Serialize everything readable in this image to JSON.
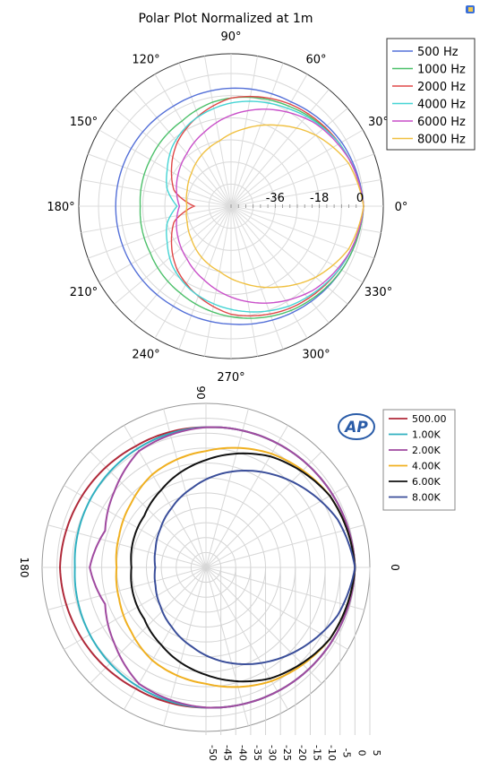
{
  "chart_data": [
    {
      "type": "polar-line",
      "title": "Polar Plot Normalized at 1m",
      "angle_labels": [
        "0°",
        "30°",
        "60°",
        "90°",
        "120°",
        "150°",
        "180°",
        "210°",
        "240°",
        "270°",
        "300°",
        "330°"
      ],
      "radial_tick_labels": [
        "-36",
        "-18",
        "0"
      ],
      "r_range_db": [
        -54,
        0
      ],
      "legend_position": "top-right",
      "grid": true,
      "series": [
        {
          "name": "500 Hz",
          "color": "#5470d8",
          "angles": [
            0,
            30,
            60,
            90,
            120,
            150,
            180,
            210,
            240,
            270,
            300,
            330
          ],
          "values_db": [
            0,
            -2,
            -5,
            -6,
            -7,
            -7,
            -7,
            -7,
            -7,
            -6,
            -4,
            -2
          ]
        },
        {
          "name": "1000 Hz",
          "color": "#4cc06a",
          "angles": [
            0,
            30,
            60,
            80,
            100,
            120,
            150,
            180,
            210,
            240,
            270,
            300,
            330
          ],
          "values_db": [
            0,
            -3,
            -7,
            -9,
            -11,
            -14,
            -16,
            -17,
            -16,
            -13,
            -9,
            -5,
            -2
          ]
        },
        {
          "name": "2000 Hz",
          "color": "#e04848",
          "angles": [
            0,
            30,
            60,
            90,
            110,
            130,
            150,
            165,
            175,
            180,
            185,
            195,
            210,
            230,
            250,
            270,
            300,
            330
          ],
          "values_db": [
            0,
            -3,
            -6,
            -10,
            -15,
            -20,
            -26,
            -30,
            -36,
            -39,
            -36,
            -30,
            -26,
            -20,
            -15,
            -10,
            -6,
            -3
          ]
        },
        {
          "name": "4000 Hz",
          "color": "#45d4d4",
          "angles": [
            0,
            30,
            60,
            90,
            115,
            135,
            150,
            165,
            180,
            195,
            210,
            225,
            245,
            270,
            300,
            330
          ],
          "values_db": [
            0,
            -3,
            -8,
            -12,
            -16,
            -20,
            -24,
            -27,
            -32,
            -27,
            -24,
            -20,
            -16,
            -12,
            -7,
            -3
          ]
        },
        {
          "name": "6000 Hz",
          "color": "#c94fc9",
          "angles": [
            0,
            20,
            45,
            70,
            90,
            110,
            130,
            150,
            165,
            180,
            195,
            210,
            230,
            250,
            270,
            290,
            315,
            340
          ],
          "values_db": [
            0,
            -2,
            -6,
            -12,
            -17,
            -22,
            -26,
            -29,
            -31,
            -33,
            -31,
            -29,
            -26,
            -22,
            -17,
            -12,
            -6,
            -2
          ]
        },
        {
          "name": "8000 Hz",
          "color": "#f0c040",
          "angles": [
            0,
            20,
            40,
            60,
            80,
            100,
            120,
            140,
            160,
            180,
            200,
            220,
            240,
            260,
            280,
            300,
            320,
            340
          ],
          "values_db": [
            0,
            -3,
            -9,
            -16,
            -22,
            -27,
            -30,
            -33,
            -35,
            -36,
            -35,
            -33,
            -30,
            -27,
            -22,
            -16,
            -9,
            -3
          ]
        }
      ]
    },
    {
      "type": "polar-line",
      "title": "",
      "angle_labels": [
        "0",
        "90",
        "180"
      ],
      "radial_tick_labels": [
        "5",
        "0",
        "-5",
        "-10",
        "-15",
        "-20",
        "-25",
        "-30",
        "-35",
        "-40",
        "-45",
        "-50"
      ],
      "r_range_db": [
        -50,
        5
      ],
      "legend_position": "top-right",
      "grid": true,
      "series": [
        {
          "name": "500.00",
          "color": "#b02a3a",
          "angles": [
            0,
            30,
            60,
            90,
            120,
            150,
            180,
            210,
            240,
            270,
            300,
            330
          ],
          "values_db": [
            0,
            -1,
            -2,
            -3,
            -3,
            -2,
            -1,
            -2,
            -3,
            -3,
            -2,
            -1
          ]
        },
        {
          "name": "1.00K",
          "color": "#30b0c0",
          "angles": [
            0,
            30,
            60,
            90,
            120,
            150,
            180,
            210,
            240,
            270,
            300,
            330
          ],
          "values_db": [
            0,
            -1,
            -2,
            -3,
            -4,
            -5,
            -6,
            -5,
            -4,
            -3,
            -2,
            -1
          ]
        },
        {
          "name": "2.00K",
          "color": "#a04aa0",
          "angles": [
            0,
            30,
            60,
            90,
            120,
            140,
            160,
            180,
            200,
            220,
            240,
            270,
            300,
            330
          ],
          "values_db": [
            0,
            -1,
            -2,
            -3,
            -5,
            -10,
            -14,
            -11,
            -14,
            -10,
            -5,
            -3,
            -2,
            -1
          ]
        },
        {
          "name": "4.00K",
          "color": "#f0b020",
          "angles": [
            0,
            30,
            60,
            90,
            120,
            140,
            160,
            180,
            200,
            220,
            240,
            270,
            300,
            330
          ],
          "values_db": [
            0,
            -2,
            -6,
            -11,
            -14,
            -17,
            -19,
            -20,
            -19,
            -17,
            -14,
            -11,
            -6,
            -2
          ]
        },
        {
          "name": "6.00K",
          "color": "#101010",
          "angles": [
            0,
            30,
            60,
            90,
            120,
            140,
            160,
            180,
            200,
            220,
            240,
            270,
            300,
            330
          ],
          "values_db": [
            0,
            -2,
            -7,
            -14,
            -20,
            -23,
            -24,
            -25,
            -24,
            -23,
            -20,
            -14,
            -7,
            -2
          ]
        },
        {
          "name": "8.00K",
          "color": "#3a4e9a",
          "angles": [
            0,
            20,
            40,
            60,
            80,
            100,
            120,
            140,
            160,
            180,
            200,
            220,
            240,
            260,
            280,
            300,
            320,
            340
          ],
          "values_db": [
            0,
            -3,
            -8,
            -13,
            -18,
            -23,
            -27,
            -30,
            -32,
            -33,
            -32,
            -30,
            -27,
            -23,
            -18,
            -13,
            -8,
            -3
          ]
        }
      ]
    }
  ],
  "logo": {
    "text": "AP",
    "color": "#2a5ca8"
  }
}
